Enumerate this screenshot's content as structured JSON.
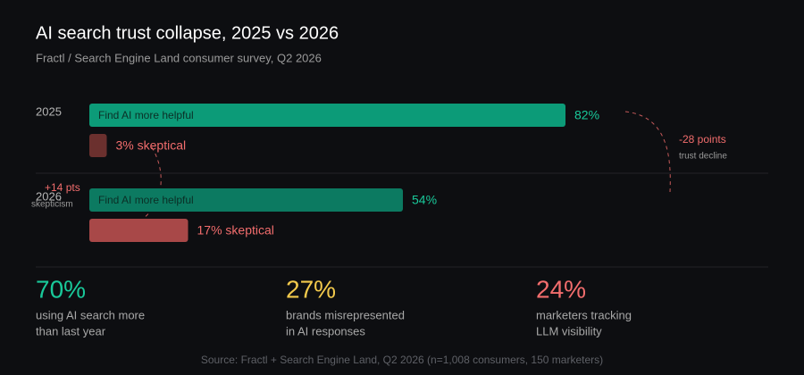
{
  "chart_data": {
    "type": "bar",
    "orientation": "horizontal",
    "title": "AI search trust collapse, 2025 vs 2026",
    "subtitle": "Fractl / Search Engine Land consumer survey, Q2 2026",
    "categories": [
      "2025",
      "2026"
    ],
    "series": [
      {
        "name": "Find AI more helpful",
        "colors": [
          "#0c9b78",
          "#0c7a61"
        ],
        "label_color": "#19c99a",
        "values": [
          82,
          54
        ],
        "value_labels": [
          "82%",
          "54%"
        ]
      },
      {
        "colors": [
          "#6b302e",
          "#a84848"
        ],
        "label_color": "#f26d6d",
        "values": [
          3,
          17
        ],
        "value_labels": [
          "3% skeptical",
          "17% skeptical"
        ]
      }
    ],
    "annotations": [
      {
        "text": "-28 points",
        "note": "trust decline"
      },
      {
        "text": "+14 pts",
        "note": "skepticism"
      }
    ]
  },
  "stats": [
    {
      "value": "70%",
      "color": "#19c99a",
      "lines": [
        "using AI search more",
        "than last year"
      ]
    },
    {
      "value": "27%",
      "color": "#f2c94c",
      "lines": [
        "brands misrepresented",
        "in AI responses"
      ]
    },
    {
      "value": "24%",
      "color": "#f26d6d",
      "lines": [
        "marketers tracking",
        "LLM visibility"
      ]
    }
  ],
  "source": "Source: Fractl + Search Engine Land, Q2 2026 (n=1,008 consumers, 150 marketers)"
}
